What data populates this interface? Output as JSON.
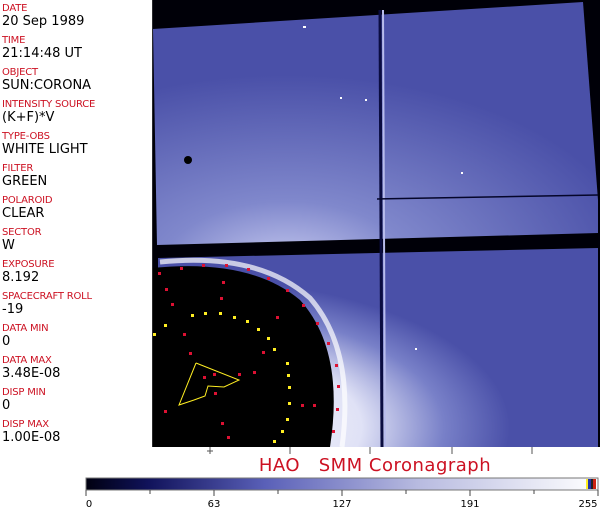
{
  "header": [
    {
      "label": "DATE",
      "value": "20 Sep 1989"
    },
    {
      "label": "TIME",
      "value": "21:14:48 UT"
    },
    {
      "label": "OBJECT",
      "value": "SUN:CORONA"
    },
    {
      "label": "INTENSITY SOURCE",
      "value": "(K+F)*V"
    },
    {
      "label": "TYPE-OBS",
      "value": "WHITE LIGHT"
    },
    {
      "label": "FILTER",
      "value": "GREEN"
    },
    {
      "label": "POLAROID",
      "value": "CLEAR"
    },
    {
      "label": "SECTOR",
      "value": "W"
    },
    {
      "label": "EXPOSURE",
      "value": "8.192"
    },
    {
      "label": "SPACECRAFT ROLL",
      "value": "-19"
    },
    {
      "label": "DATA MIN",
      "value": "0"
    },
    {
      "label": "DATA MAX",
      "value": "3.48E-08"
    },
    {
      "label": "DISP MIN",
      "value": "0"
    },
    {
      "label": "DISP MAX",
      "value": "1.00E-08"
    }
  ],
  "title": "HAO   SMM Coronagraph",
  "colorbar": {
    "ticks": [
      "0",
      "63",
      "127",
      "191",
      "255"
    ],
    "colors": {
      "low": "#000010",
      "mid": "#4a50b0",
      "high": "#ffffff",
      "text": "#cc1122"
    }
  }
}
